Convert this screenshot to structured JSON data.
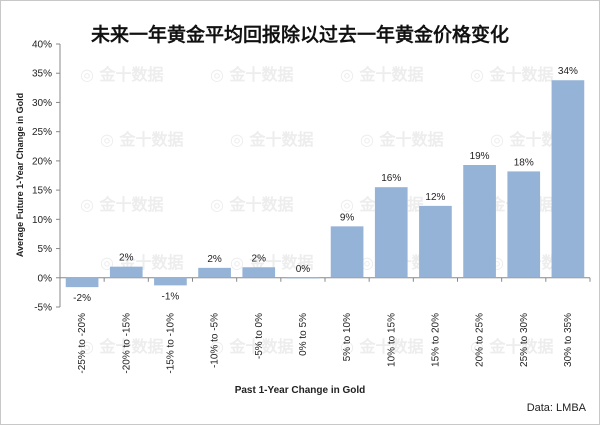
{
  "chart_data": {
    "type": "bar",
    "title": "未来一年黄金平均回报除以过去一年黄金价格变化",
    "xlabel": "Past 1-Year Change in Gold",
    "ylabel": "Average Future 1-Year Change in Gold",
    "categories": [
      "-25% to -20%",
      "-20% to -15%",
      "-15% to -10%",
      "-10% to -5%",
      "-5% to 0%",
      "0% to 5%",
      "5% to 10%",
      "10% to 15%",
      "15% to 20%",
      "20% to 25%",
      "25% to 30%",
      "30% to 35%"
    ],
    "values": [
      -1.6,
      1.9,
      -1.3,
      1.7,
      1.8,
      0.0,
      8.8,
      15.5,
      12.3,
      19.3,
      18.2,
      33.8
    ],
    "data_labels": [
      "-2%",
      "2%",
      "-1%",
      "2%",
      "2%",
      "0%",
      "9%",
      "16%",
      "12%",
      "19%",
      "18%",
      "34%"
    ],
    "yticks": [
      "-5%",
      "0%",
      "5%",
      "10%",
      "15%",
      "20%",
      "25%",
      "30%",
      "35%",
      "40%"
    ],
    "ylim": [
      -5,
      40
    ],
    "bar_color": "#95b3d7",
    "grid": false,
    "source": "Data: LMBA",
    "watermark": "金十数据"
  }
}
